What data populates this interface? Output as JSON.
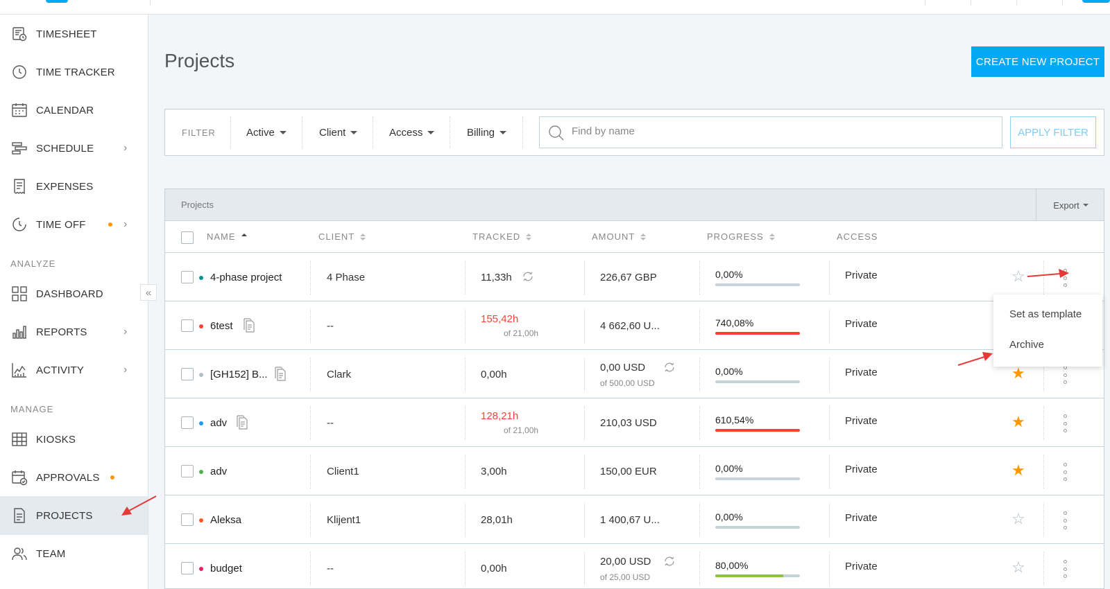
{
  "sidebar": {
    "items": [
      {
        "label": "TIMESHEET"
      },
      {
        "label": "TIME TRACKER"
      },
      {
        "label": "CALENDAR"
      },
      {
        "label": "SCHEDULE"
      },
      {
        "label": "EXPENSES"
      },
      {
        "label": "TIME OFF"
      },
      {
        "label": "DASHBOARD"
      },
      {
        "label": "REPORTS"
      },
      {
        "label": "ACTIVITY"
      },
      {
        "label": "KIOSKS"
      },
      {
        "label": "APPROVALS"
      },
      {
        "label": "PROJECTS"
      },
      {
        "label": "TEAM"
      }
    ],
    "section_analyze": "ANALYZE",
    "section_manage": "MANAGE",
    "collapse_symbol": "«",
    "chevron": "›",
    "active_item": "PROJECTS"
  },
  "page": {
    "title": "Projects",
    "create_button": "CREATE NEW PROJECT"
  },
  "filter": {
    "label": "FILTER",
    "dropdowns": [
      "Active",
      "Client",
      "Access",
      "Billing"
    ],
    "search_placeholder": "Find by name",
    "search_value": "",
    "apply_button": "APPLY FILTER"
  },
  "table": {
    "title": "Projects",
    "export_label": "Export",
    "columns": {
      "name": "NAME",
      "client": "CLIENT",
      "tracked": "TRACKED",
      "amount": "AMOUNT",
      "progress": "PROGRESS",
      "access": "ACCESS"
    },
    "rows": [
      {
        "dot_color": "#009688",
        "name": "4-phase project",
        "has_template_icon": false,
        "client": "4 Phase",
        "tracked": "11,33h",
        "tracked_over": false,
        "tracked_sub": "",
        "tracked_sync": true,
        "amount": "226,67 GBP",
        "amount_sub": "",
        "amount_sync": false,
        "progress_label": "0,00%",
        "progress_fraction": 0,
        "progress_color": "#c6d2d9",
        "access": "Private",
        "starred": false
      },
      {
        "dot_color": "#f44336",
        "name": "6test",
        "has_template_icon": true,
        "client": "--",
        "tracked": "155,42h",
        "tracked_over": true,
        "tracked_sub": "of 21,00h",
        "tracked_sync": false,
        "amount": "4 662,60 U...",
        "amount_sub": "",
        "amount_sync": false,
        "progress_label": "740,08%",
        "progress_fraction": 1,
        "progress_color": "#f44336",
        "access": "Private",
        "starred": false
      },
      {
        "dot_color": "#b0bec5",
        "name": "[GH152] B...",
        "has_template_icon": true,
        "client": "Clark",
        "tracked": "0,00h",
        "tracked_over": false,
        "tracked_sub": "",
        "tracked_sync": false,
        "amount": "0,00 USD",
        "amount_sub": "of 500,00 USD",
        "amount_sync": true,
        "progress_label": "0,00%",
        "progress_fraction": 0,
        "progress_color": "#c6d2d9",
        "access": "Private",
        "starred": true
      },
      {
        "dot_color": "#2196f3",
        "name": "adv",
        "has_template_icon": true,
        "client": "--",
        "tracked": "128,21h",
        "tracked_over": true,
        "tracked_sub": "of 21,00h",
        "tracked_sync": false,
        "amount": "210,03 USD",
        "amount_sub": "",
        "amount_sync": false,
        "progress_label": "610,54%",
        "progress_fraction": 1,
        "progress_color": "#f44336",
        "access": "Private",
        "starred": true
      },
      {
        "dot_color": "#4caf50",
        "name": "adv",
        "has_template_icon": false,
        "client": "Client1",
        "tracked": "3,00h",
        "tracked_over": false,
        "tracked_sub": "",
        "tracked_sync": false,
        "amount": "150,00 EUR",
        "amount_sub": "",
        "amount_sync": false,
        "progress_label": "0,00%",
        "progress_fraction": 0,
        "progress_color": "#c6d2d9",
        "access": "Private",
        "starred": true
      },
      {
        "dot_color": "#ff5722",
        "name": "Aleksa",
        "has_template_icon": false,
        "client": "Klijent1",
        "tracked": "28,01h",
        "tracked_over": false,
        "tracked_sub": "",
        "tracked_sync": false,
        "amount": "1 400,67 U...",
        "amount_sub": "",
        "amount_sync": false,
        "progress_label": "0,00%",
        "progress_fraction": 0,
        "progress_color": "#c6d2d9",
        "access": "Private",
        "starred": false
      },
      {
        "dot_color": "#e91e63",
        "name": "budget",
        "has_template_icon": false,
        "client": "--",
        "tracked": "0,00h",
        "tracked_over": false,
        "tracked_sub": "",
        "tracked_sync": false,
        "amount": "20,00 USD",
        "amount_sub": "of 25,00 USD",
        "amount_sync": true,
        "progress_label": "80,00%",
        "progress_fraction": 0.8,
        "progress_color": "#8bc34a",
        "access": "Private",
        "starred": false
      }
    ]
  },
  "row_menu": {
    "items": [
      "Set as template",
      "Archive"
    ]
  },
  "colors": {
    "accent": "#03a9f4",
    "star_on": "#ff9800",
    "over_budget": "#f44336",
    "annotation_arrow": "#e53935"
  },
  "icons": {
    "star_on": "★",
    "star_off": "☆"
  }
}
